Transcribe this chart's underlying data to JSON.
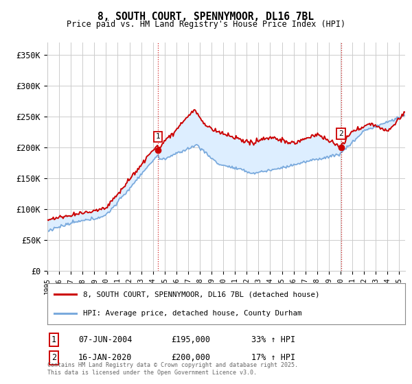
{
  "title": "8, SOUTH COURT, SPENNYMOOR, DL16 7BL",
  "subtitle": "Price paid vs. HM Land Registry's House Price Index (HPI)",
  "ylabel_ticks": [
    "£0",
    "£50K",
    "£100K",
    "£150K",
    "£200K",
    "£250K",
    "£300K",
    "£350K"
  ],
  "ylim": [
    0,
    370000
  ],
  "xlim_start": 1995.0,
  "xlim_end": 2025.5,
  "t1": 2004.44,
  "t2": 2020.04,
  "p1": 195000,
  "p2": 200000,
  "legend_line1": "8, SOUTH COURT, SPENNYMOOR, DL16 7BL (detached house)",
  "legend_line2": "HPI: Average price, detached house, County Durham",
  "footer": "Contains HM Land Registry data © Crown copyright and database right 2025.\nThis data is licensed under the Open Government Licence v3.0.",
  "price_color": "#cc0000",
  "hpi_color": "#7aaadd",
  "fill_color": "#ddeeff",
  "vline_color": "#cc0000",
  "grid_color": "#cccccc",
  "background_color": "#ffffff",
  "table_row1": [
    "1",
    "07-JUN-2004",
    "£195,000",
    "33% ↑ HPI"
  ],
  "table_row2": [
    "2",
    "16-JAN-2020",
    "£200,000",
    "17% ↑ HPI"
  ],
  "fig_width": 6.0,
  "fig_height": 5.6,
  "dpi": 100
}
